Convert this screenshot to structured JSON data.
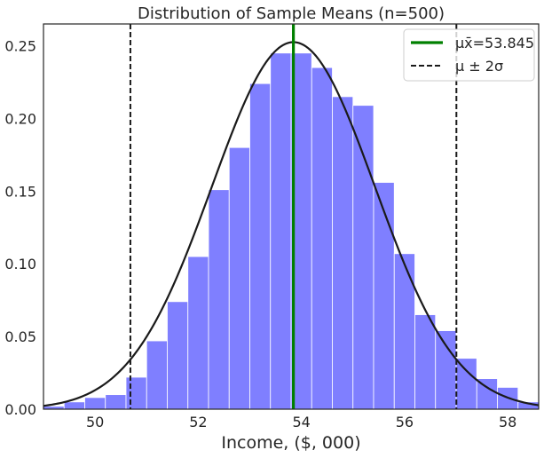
{
  "chart_data": {
    "type": "bar",
    "title": "Distribution of Sample Means (n=500)",
    "xlabel": "Income, ($, 000)",
    "ylabel": "",
    "xlim": [
      49.0,
      58.6
    ],
    "ylim": [
      0.0,
      0.265
    ],
    "xticks": [
      50,
      52,
      54,
      56,
      58
    ],
    "yticks": [
      0.0,
      0.05,
      0.1,
      0.15,
      0.2,
      0.25
    ],
    "xtick_labels": [
      "50",
      "52",
      "54",
      "56",
      "58"
    ],
    "ytick_labels": [
      "0.00",
      "0.05",
      "0.10",
      "0.15",
      "0.20",
      "0.25"
    ],
    "grid": false,
    "legend_position": "top-right",
    "bar_color": "#7f7fff",
    "bins": {
      "edges": [
        49.0,
        49.4,
        49.8,
        50.2,
        50.6,
        51.0,
        51.4,
        51.8,
        52.2,
        52.6,
        53.0,
        53.4,
        53.8,
        54.2,
        54.6,
        55.0,
        55.4,
        55.8,
        56.2,
        56.6,
        57.0,
        57.4,
        57.8,
        58.2,
        58.6
      ],
      "density": [
        0.002,
        0.005,
        0.008,
        0.01,
        0.022,
        0.047,
        0.074,
        0.105,
        0.151,
        0.18,
        0.224,
        0.245,
        0.245,
        0.235,
        0.215,
        0.209,
        0.156,
        0.107,
        0.065,
        0.054,
        0.035,
        0.021,
        0.015,
        0.005
      ]
    },
    "normal_curve": {
      "mean": 53.845,
      "sigma": 1.58,
      "color": "#1a1a1a"
    },
    "mean_line": {
      "x": 53.845,
      "color": "#008000"
    },
    "sigma_lines": {
      "x": [
        50.685,
        57.005
      ],
      "color": "#1a1a1a"
    },
    "legend": [
      {
        "label": "μx̄=53.845",
        "style": "solid",
        "color": "#008000"
      },
      {
        "label": "μ ± 2σ",
        "style": "dashed",
        "color": "#1a1a1a"
      }
    ]
  }
}
